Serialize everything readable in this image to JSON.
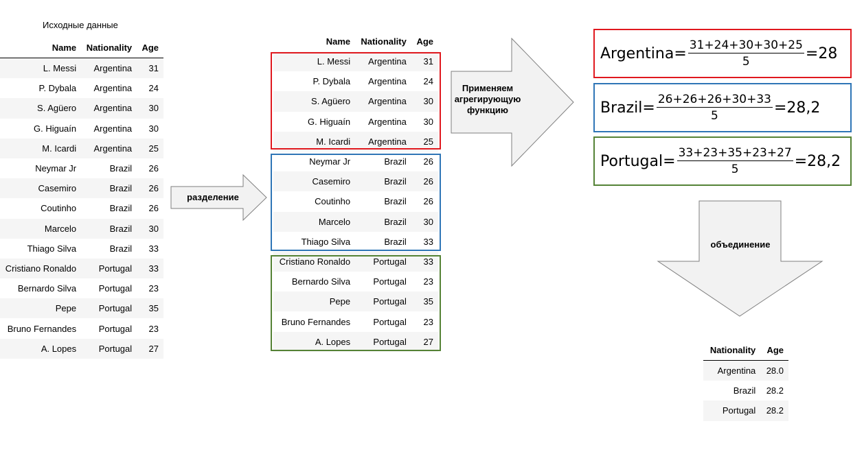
{
  "source_table": {
    "caption": "Исходные данные",
    "columns": [
      "Name",
      "Nationality",
      "Age"
    ],
    "rows": [
      [
        "L. Messi",
        "Argentina",
        "31"
      ],
      [
        "P. Dybala",
        "Argentina",
        "24"
      ],
      [
        "S. Agüero",
        "Argentina",
        "30"
      ],
      [
        "G. Higuaín",
        "Argentina",
        "30"
      ],
      [
        "M. Icardi",
        "Argentina",
        "25"
      ],
      [
        "Neymar Jr",
        "Brazil",
        "26"
      ],
      [
        "Casemiro",
        "Brazil",
        "26"
      ],
      [
        "Coutinho",
        "Brazil",
        "26"
      ],
      [
        "Marcelo",
        "Brazil",
        "30"
      ],
      [
        "Thiago Silva",
        "Brazil",
        "33"
      ],
      [
        "Cristiano Ronaldo",
        "Portugal",
        "33"
      ],
      [
        "Bernardo Silva",
        "Portugal",
        "23"
      ],
      [
        "Pepe",
        "Portugal",
        "35"
      ],
      [
        "Bruno Fernandes",
        "Portugal",
        "23"
      ],
      [
        "A. Lopes",
        "Portugal",
        "27"
      ]
    ]
  },
  "arrows": {
    "split": "разделение",
    "apply": "Применяем агрегирующую функцию",
    "combine": "объединение"
  },
  "groups": {
    "columns": [
      "Name",
      "Nationality",
      "Age"
    ],
    "argentina": [
      [
        "L. Messi",
        "Argentina",
        "31"
      ],
      [
        "P. Dybala",
        "Argentina",
        "24"
      ],
      [
        "S. Agüero",
        "Argentina",
        "30"
      ],
      [
        "G. Higuaín",
        "Argentina",
        "30"
      ],
      [
        "M. Icardi",
        "Argentina",
        "25"
      ]
    ],
    "brazil": [
      [
        "Neymar Jr",
        "Brazil",
        "26"
      ],
      [
        "Casemiro",
        "Brazil",
        "26"
      ],
      [
        "Coutinho",
        "Brazil",
        "26"
      ],
      [
        "Marcelo",
        "Brazil",
        "30"
      ],
      [
        "Thiago Silva",
        "Brazil",
        "33"
      ]
    ],
    "portugal": [
      [
        "Cristiano Ronaldo",
        "Portugal",
        "33"
      ],
      [
        "Bernardo Silva",
        "Portugal",
        "23"
      ],
      [
        "Pepe",
        "Portugal",
        "35"
      ],
      [
        "Bruno Fernandes",
        "Portugal",
        "23"
      ],
      [
        "A. Lopes",
        "Portugal",
        "27"
      ]
    ]
  },
  "formulas": {
    "argentina": {
      "label": "Argentina=",
      "numerator": "31+24+30+30+25",
      "denominator": "5",
      "result": "=28"
    },
    "brazil": {
      "label": "Brazil=",
      "numerator": "26+26+26+30+33",
      "denominator": "5",
      "result": "=28,2"
    },
    "portugal": {
      "label": "Portugal=",
      "numerator": "33+23+35+23+27",
      "denominator": "5",
      "result": "=28,2"
    }
  },
  "result_table": {
    "columns": [
      "Nationality",
      "Age"
    ],
    "rows": [
      [
        "Argentina",
        "28.0"
      ],
      [
        "Brazil",
        "28.2"
      ],
      [
        "Portugal",
        "28.2"
      ]
    ]
  },
  "colors": {
    "argentina_box": "#e0181e",
    "brazil_box": "#2e75b6",
    "portugal_box": "#548235",
    "arrow_fill": "#f2f2f2",
    "arrow_stroke": "#7f7f7f"
  }
}
